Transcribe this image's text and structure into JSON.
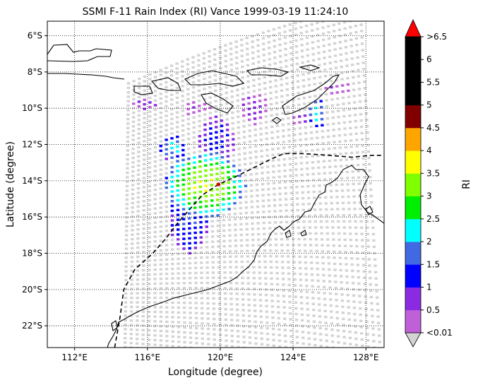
{
  "title": "SSMI F-11 Rain Index (RI) Vance 1999-03-19 11:24:10",
  "xlabel": "Longitude (degree)",
  "ylabel": "Latitude (degree)",
  "colorbar": {
    "label": "RI",
    "ticks": [
      "<0.01",
      "0.5",
      "1",
      "1.5",
      "2",
      "2.5",
      "3",
      "3.5",
      "4",
      "4.5",
      "5",
      "5.5",
      "6",
      ">6.5"
    ],
    "colors": [
      "#c060d8",
      "#8a2be2",
      "#0000ff",
      "#4169e1",
      "#00ffff",
      "#00ee00",
      "#7fff00",
      "#ffff00",
      "#ffa500",
      "#800000",
      "#000000",
      "#000000",
      "#000000"
    ],
    "under_color": "#d3d3d3",
    "over_color": "#ff0000"
  },
  "chart_data": {
    "type": "scatter",
    "x_ticks": [
      "112°E",
      "116°E",
      "120°E",
      "124°E",
      "128°E"
    ],
    "x_tick_values": [
      112,
      116,
      120,
      124,
      128
    ],
    "y_ticks": [
      "6°S",
      "8°S",
      "10°S",
      "12°S",
      "14°S",
      "16°S",
      "18°S",
      "20°S",
      "22°S"
    ],
    "y_tick_values": [
      -6,
      -8,
      -10,
      -12,
      -14,
      -16,
      -18,
      -20,
      -22
    ],
    "xlim": [
      110.5,
      129
    ],
    "ylim": [
      -23.2,
      -5.2
    ],
    "grid": true,
    "grid_style": "dotted",
    "swath_background_value": "<0.01",
    "storm_center": {
      "lon": 119.9,
      "lat": -14.2
    },
    "storm_track": [
      [
        114.2,
        -23.2
      ],
      [
        114.5,
        -21.5
      ],
      [
        114.7,
        -20.0
      ],
      [
        115.3,
        -18.9
      ],
      [
        116.3,
        -18.0
      ],
      [
        117.0,
        -17.2
      ],
      [
        117.6,
        -16.4
      ],
      [
        118.3,
        -15.6
      ],
      [
        119.0,
        -14.8
      ],
      [
        119.9,
        -14.2
      ],
      [
        120.8,
        -13.8
      ],
      [
        121.8,
        -13.3
      ],
      [
        122.8,
        -12.8
      ],
      [
        123.5,
        -12.5
      ],
      [
        124.5,
        -12.5
      ],
      [
        126.0,
        -12.6
      ],
      [
        127.2,
        -12.7
      ],
      [
        128.3,
        -12.6
      ],
      [
        129.0,
        -12.6
      ]
    ],
    "rain_clusters": [
      {
        "lon": 119.2,
        "lat": -14.2,
        "rx": 2.2,
        "ry": 1.8,
        "peak": 3.6
      },
      {
        "lon": 118.3,
        "lat": -15.6,
        "rx": 1.2,
        "ry": 2.4,
        "peak": 1.6
      },
      {
        "lon": 119.8,
        "lat": -11.8,
        "rx": 1.0,
        "ry": 1.4,
        "peak": 1.2
      },
      {
        "lon": 117.4,
        "lat": -12.2,
        "rx": 0.7,
        "ry": 0.7,
        "peak": 2.2
      },
      {
        "lon": 121.8,
        "lat": -10.0,
        "rx": 0.8,
        "ry": 0.9,
        "peak": 0.7
      },
      {
        "lon": 125.3,
        "lat": -10.3,
        "rx": 0.5,
        "ry": 0.8,
        "peak": 2.4
      },
      {
        "lon": 115.9,
        "lat": -9.8,
        "rx": 0.8,
        "ry": 0.3,
        "peak": 0.6
      },
      {
        "lon": 124.6,
        "lat": -10.6,
        "rx": 0.7,
        "ry": 0.4,
        "peak": 0.7
      },
      {
        "lon": 126.4,
        "lat": -8.9,
        "rx": 0.8,
        "ry": 0.4,
        "peak": 0.4
      },
      {
        "lon": 118.7,
        "lat": -10.0,
        "rx": 0.8,
        "ry": 0.4,
        "peak": 0.4
      }
    ]
  }
}
